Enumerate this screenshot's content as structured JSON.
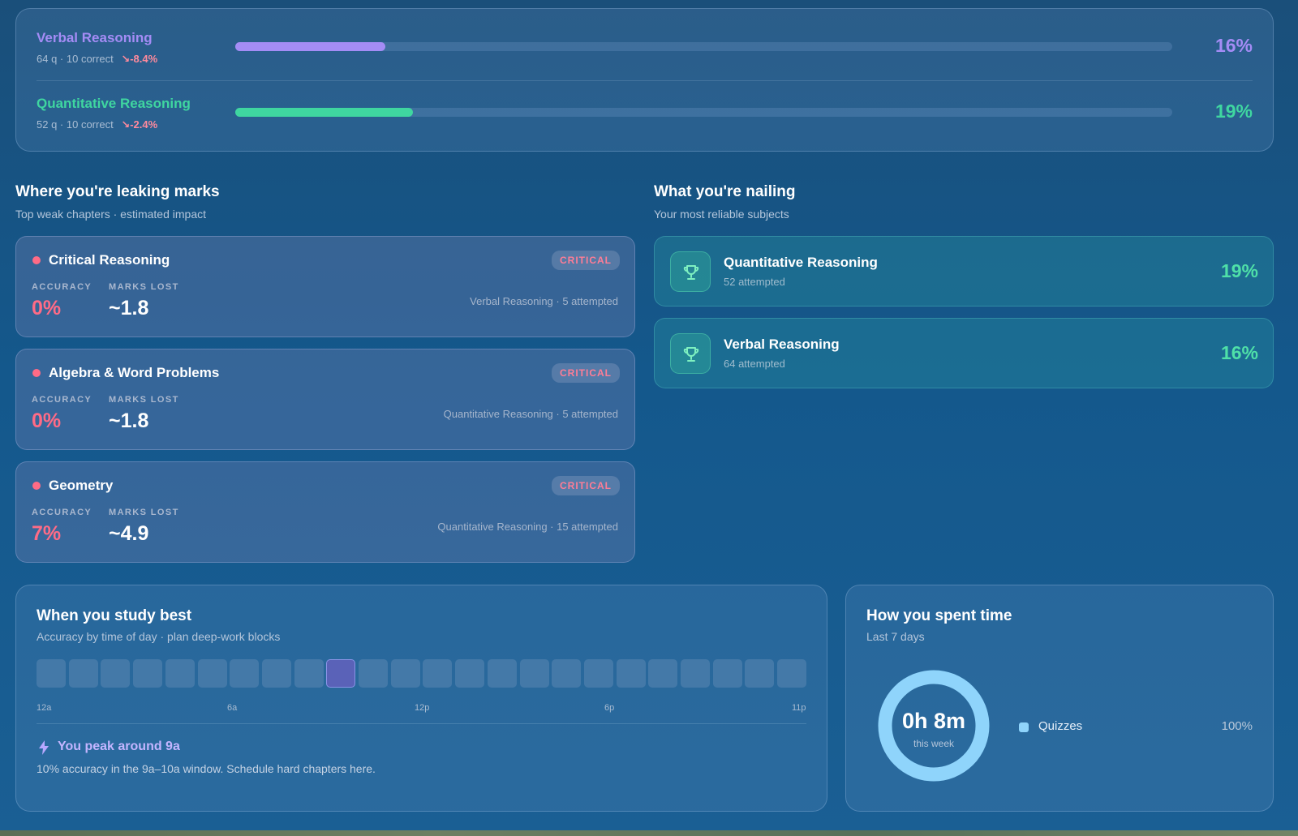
{
  "subjects": [
    {
      "name": "Verbal Reasoning",
      "questions": "64 q",
      "correct": "10 correct",
      "trend": "-8.4%",
      "percent": "16%",
      "progress": 0.16,
      "color": "#a48cf5"
    },
    {
      "name": "Quantitative Reasoning",
      "questions": "52 q",
      "correct": "10 correct",
      "trend": "-2.4%",
      "percent": "19%",
      "progress": 0.19,
      "color": "#3fd6a0"
    }
  ],
  "weak_section": {
    "title": "Where you're leaking marks",
    "subtitle": "Top weak chapters · estimated impact",
    "accuracy_label": "ACCURACY",
    "marks_lost_label": "MARKS LOST",
    "chapters": [
      {
        "name": "Critical Reasoning",
        "badge": "CRITICAL",
        "accuracy": "0%",
        "marks_lost": "~1.8",
        "meta": "Verbal Reasoning · 5 attempted"
      },
      {
        "name": "Algebra & Word Problems",
        "badge": "CRITICAL",
        "accuracy": "0%",
        "marks_lost": "~1.8",
        "meta": "Quantitative Reasoning · 5 attempted"
      },
      {
        "name": "Geometry",
        "badge": "CRITICAL",
        "accuracy": "7%",
        "marks_lost": "~4.9",
        "meta": "Quantitative Reasoning · 15 attempted"
      }
    ]
  },
  "strong_section": {
    "title": "What you're nailing",
    "subtitle": "Your most reliable subjects",
    "items": [
      {
        "name": "Quantitative Reasoning",
        "meta": "52 attempted",
        "percent": "19%",
        "icon": "trophy-icon"
      },
      {
        "name": "Verbal Reasoning",
        "meta": "64 attempted",
        "percent": "16%",
        "icon": "trophy-icon"
      }
    ]
  },
  "study_best": {
    "title": "When you study best",
    "subtitle": "Accuracy by time of day · plan deep-work blocks",
    "hours_count": 24,
    "peak_hour_index": 9,
    "hour_labels": [
      "12a",
      "6a",
      "12p",
      "6p",
      "11p"
    ],
    "peak_title": "You peak around 9a",
    "peak_desc": "10% accuracy in the 9a–10a window. Schedule hard chapters here.",
    "icon": "lightning-icon"
  },
  "time_spent": {
    "title": "How you spent time",
    "subtitle": "Last 7 days",
    "total": "0h 8m",
    "total_caption": "this week",
    "legend": [
      {
        "name": "Quizzes",
        "percent": "100%",
        "color": "#8fd4fb"
      }
    ]
  },
  "colors": {
    "critical": "#ff6b86",
    "success": "#4fe0a8",
    "peak_cell": "#5a62b8"
  }
}
